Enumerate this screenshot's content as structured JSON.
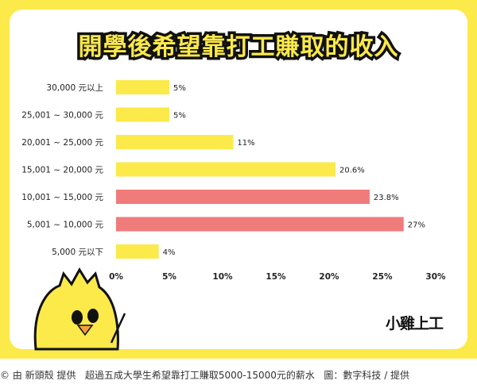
{
  "caption": "© 由 新頭殼 提供   超過五成大學生希望靠打工賺取5000-15000元的薪水   圖：數字科技 / 提供",
  "logo_text": "小雞上工",
  "colors": {
    "background": "#fce94a",
    "bar_yellow": "#fce94a",
    "bar_red": "#f07b7b"
  },
  "chart_data": {
    "type": "bar",
    "orientation": "horizontal",
    "title": "開學後希望靠打工賺取的收入",
    "categories": [
      "30,000 元以上",
      "25,001 ~ 30,000 元",
      "20,001 ~ 25,000 元",
      "15,001 ~ 20,000 元",
      "10,001 ~ 15,000 元",
      "5,001 ~ 10,000 元",
      "5,000 元以下"
    ],
    "values": [
      5,
      5,
      11,
      20.6,
      23.8,
      27,
      4
    ],
    "value_labels": [
      "5%",
      "5%",
      "11%",
      "20.6%",
      "23.8%",
      "27%",
      "4%"
    ],
    "highlight": [
      false,
      false,
      false,
      false,
      true,
      true,
      false
    ],
    "xlim": [
      0,
      30
    ],
    "xticks": [
      "0%",
      "5%",
      "10%",
      "15%",
      "20%",
      "25%",
      "30%"
    ],
    "xlabel": "",
    "ylabel": "",
    "grid": false
  }
}
